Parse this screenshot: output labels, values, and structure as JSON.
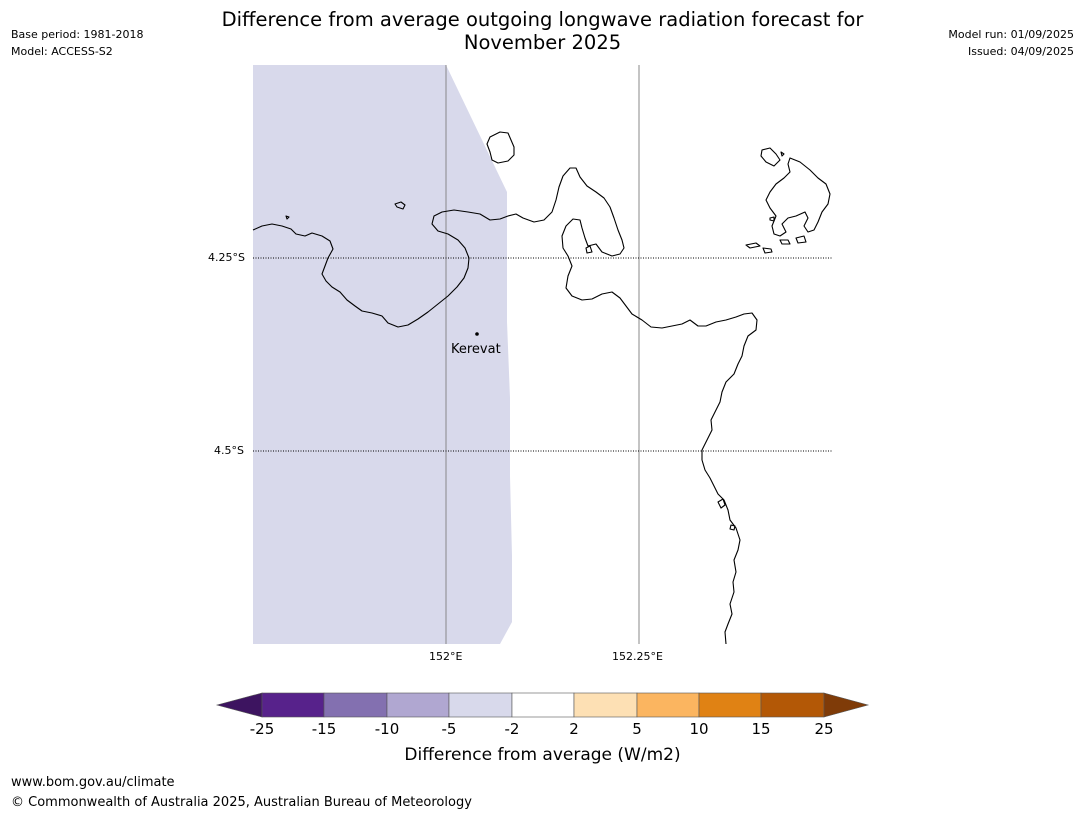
{
  "title_line1": "Difference from average outgoing longwave radiation forecast for",
  "title_line2": "November 2025",
  "meta_left": [
    "Base period: 1981-2018",
    "Model: ACCESS-S2"
  ],
  "meta_right": [
    "Model run: 01/09/2025",
    "Issued: 04/09/2025"
  ],
  "lat_labels": [
    "4.25°S",
    "4.5°S"
  ],
  "lon_labels": [
    "152°E",
    "152.25°E"
  ],
  "place": {
    "name": "Kerevat",
    "lon": 152.04,
    "lat": -4.35
  },
  "colorbar": {
    "ticks": [
      "-25",
      "-15",
      "-10",
      "-5",
      "-2",
      "2",
      "5",
      "10",
      "15",
      "25"
    ],
    "colors": [
      "#3d1460",
      "#57228b",
      "#8370b0",
      "#b0a7d1",
      "#d8d9eb",
      "#ffffff",
      "#fde0b4",
      "#fbb560",
      "#e08214",
      "#b35806",
      "#7f3b08"
    ],
    "title": "Difference from average (W/m2)"
  },
  "map": {
    "bounds": {
      "lon_min": 151.75,
      "lon_max": 152.5,
      "lat_min": -4.75,
      "lat_max": -4.0
    },
    "field_value_range": "-5 to -2",
    "field_color": "#d8d9eb"
  },
  "footer": [
    "www.bom.gov.au/climate",
    "© Commonwealth of Australia 2025, Australian Bureau of Meteorology"
  ]
}
